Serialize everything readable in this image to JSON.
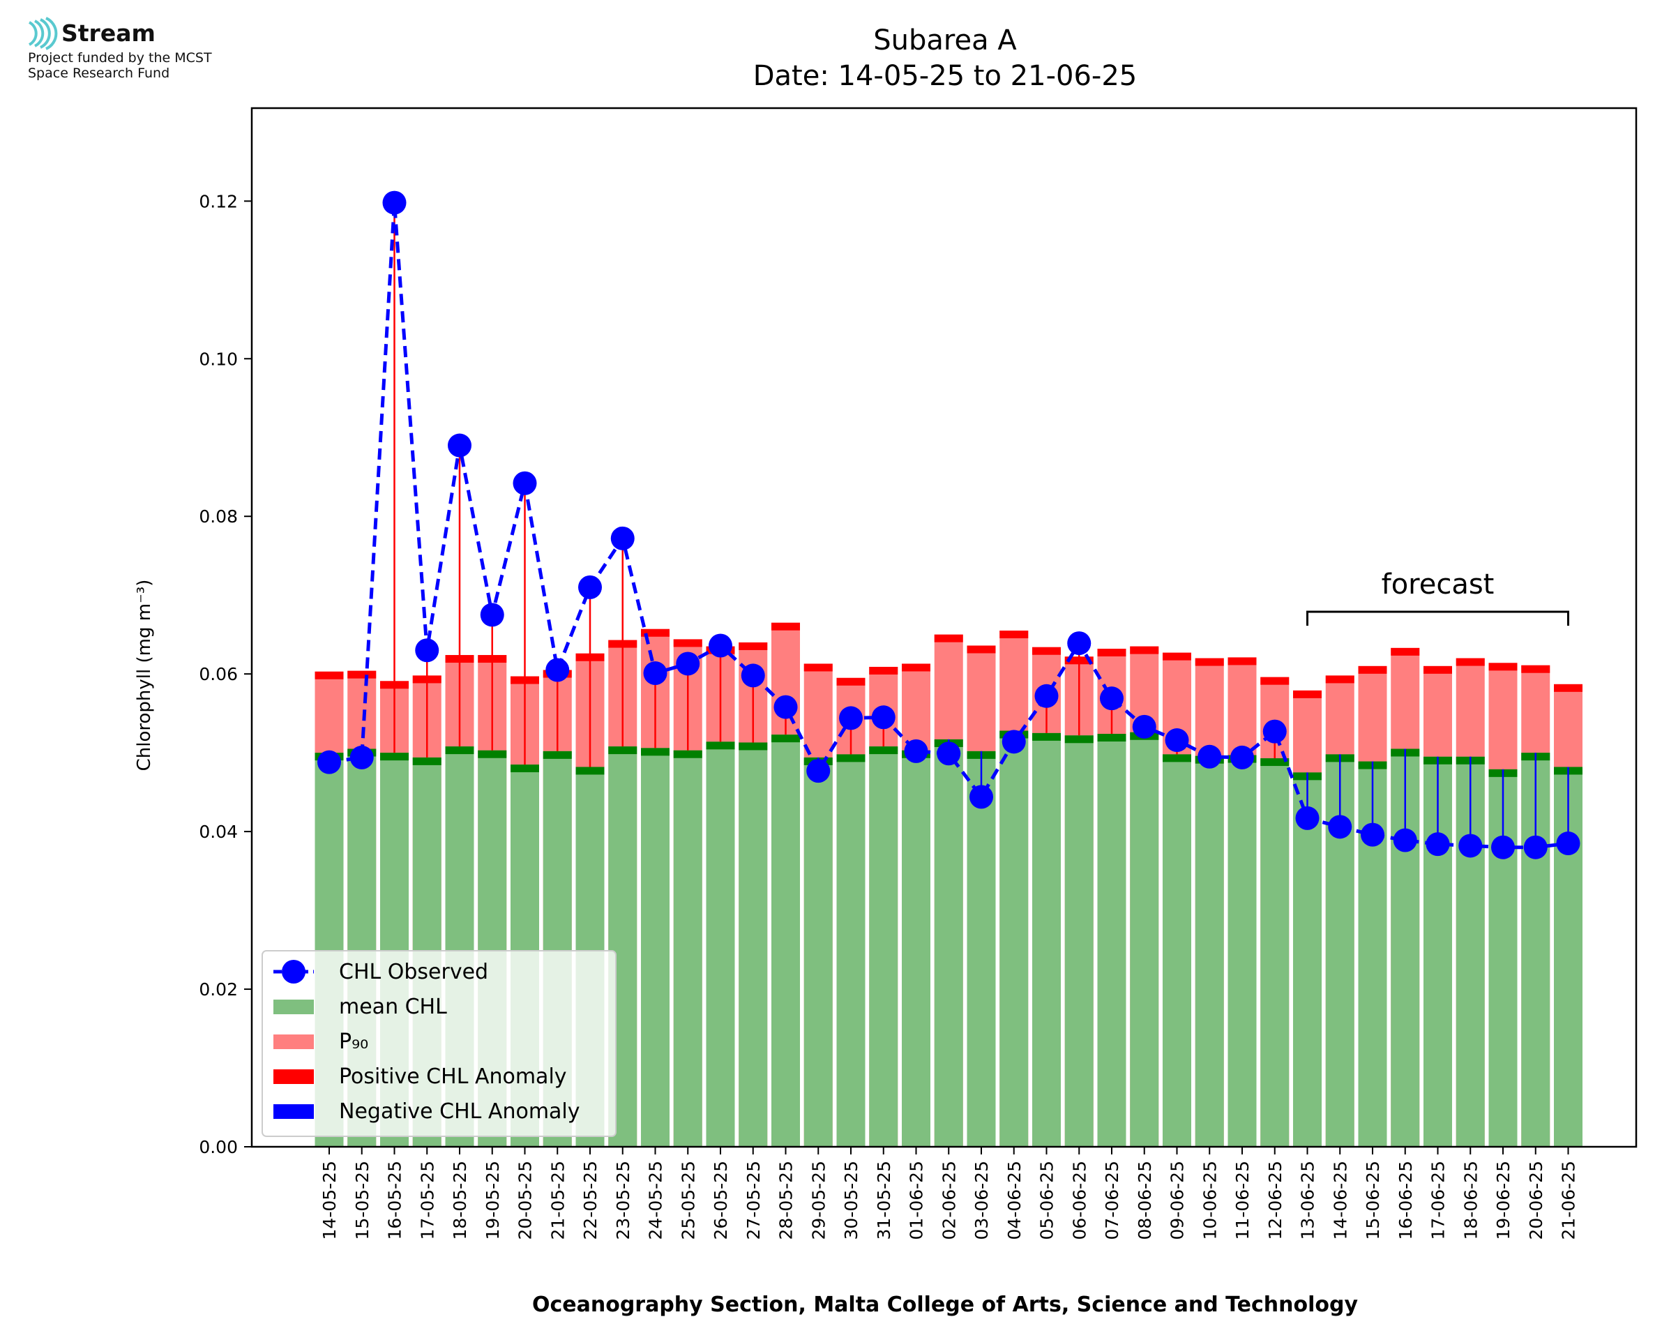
{
  "logo": {
    "name": "Stream",
    "line1": "Project funded by the MCST",
    "line2": "Space Research Fund"
  },
  "chart_data": {
    "type": "bar",
    "title": "Subarea A",
    "subtitle": "Date: 14-05-25 to 21-06-25",
    "xlabel": "Oceanography Section, Malta College of Arts, Science and Technology",
    "ylabel": "Chlorophyll (mg m⁻³)",
    "ylim": [
      0,
      0.1318
    ],
    "yticks": [
      "0.00",
      "0.02",
      "0.04",
      "0.06",
      "0.08",
      "0.10",
      "0.12"
    ],
    "grid": false,
    "legend_position": "lower-left",
    "categories": [
      "14-05-25",
      "15-05-25",
      "16-05-25",
      "17-05-25",
      "18-05-25",
      "19-05-25",
      "20-05-25",
      "21-05-25",
      "22-05-25",
      "23-05-25",
      "24-05-25",
      "25-05-25",
      "26-05-25",
      "27-05-25",
      "28-05-25",
      "29-05-25",
      "30-05-25",
      "31-05-25",
      "01-06-25",
      "02-06-25",
      "03-06-25",
      "04-06-25",
      "05-06-25",
      "06-06-25",
      "07-06-25",
      "08-06-25",
      "09-06-25",
      "10-06-25",
      "11-06-25",
      "12-06-25",
      "13-06-25",
      "14-06-25",
      "15-06-25",
      "16-06-25",
      "17-06-25",
      "18-06-25",
      "19-06-25",
      "20-06-25",
      "21-06-25"
    ],
    "series": [
      {
        "name": "CHL Observed",
        "style": "dashed-line-markers",
        "values": [
          0.0488,
          0.0494,
          0.1198,
          0.063,
          0.089,
          0.0675,
          0.0842,
          0.0605,
          0.071,
          0.0772,
          0.0601,
          0.0613,
          0.0636,
          0.0598,
          0.0558,
          0.0477,
          0.0544,
          0.0545,
          0.0502,
          0.0499,
          0.0444,
          0.0514,
          0.0572,
          0.0639,
          0.0569,
          0.0533,
          0.0516,
          0.0495,
          0.0494,
          0.0527,
          0.0417,
          0.0406,
          0.0396,
          0.0389,
          0.0384,
          0.0382,
          0.038,
          0.038,
          0.0385
        ]
      },
      {
        "name": "mean CHL",
        "values": [
          0.05,
          0.0505,
          0.05,
          0.0494,
          0.0508,
          0.0503,
          0.0485,
          0.0502,
          0.0482,
          0.0508,
          0.0506,
          0.0503,
          0.0514,
          0.0513,
          0.0523,
          0.0494,
          0.0498,
          0.0508,
          0.0503,
          0.0517,
          0.0502,
          0.0528,
          0.0525,
          0.0522,
          0.0524,
          0.0526,
          0.0498,
          0.0496,
          0.0497,
          0.0493,
          0.0475,
          0.0498,
          0.0489,
          0.0505,
          0.0495,
          0.0495,
          0.0479,
          0.05,
          0.0482
        ]
      },
      {
        "name": "P₉₀",
        "values": [
          0.0603,
          0.0604,
          0.0591,
          0.0598,
          0.0624,
          0.0624,
          0.0597,
          0.0605,
          0.0626,
          0.0643,
          0.0657,
          0.0644,
          0.0635,
          0.064,
          0.0665,
          0.0613,
          0.0595,
          0.0609,
          0.0613,
          0.065,
          0.0636,
          0.0655,
          0.0634,
          0.0622,
          0.0632,
          0.0635,
          0.0627,
          0.062,
          0.0621,
          0.0596,
          0.0579,
          0.0598,
          0.061,
          0.0633,
          0.061,
          0.062,
          0.0614,
          0.0611,
          0.0587
        ]
      }
    ],
    "legend": [
      "CHL Observed",
      "mean CHL",
      "P₉₀",
      "Positive CHL Anomaly",
      "Negative CHL Anomaly"
    ],
    "annotation": {
      "text": "forecast",
      "from": "13-06-25",
      "to": "21-06-25"
    },
    "colors": {
      "observed": "#0000ff",
      "mean": "#7fbf7f",
      "mean_cap": "#008000",
      "p90": "#ff7f7f",
      "p90_cap": "#ff0000",
      "positive": "#ff0000",
      "negative": "#0000ff"
    }
  }
}
